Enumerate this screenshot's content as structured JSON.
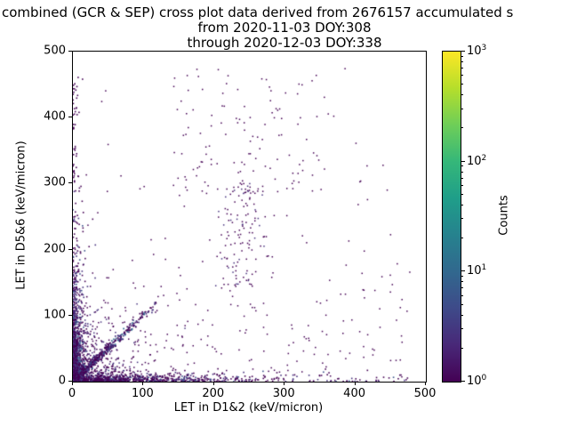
{
  "title": {
    "line1": "combined (GCR & SEP) cross plot data derived from 2676157 accumulated s",
    "line2": "from 2020-11-03 DOY:308",
    "line3": "through 2020-12-03 DOY:338"
  },
  "chart_data": {
    "type": "scatter",
    "title": "combined (GCR & SEP) cross plot data derived from 2676157 accumulated s",
    "subtitle": [
      "from 2020-11-03 DOY:308",
      "through 2020-12-03 DOY:338"
    ],
    "xlabel": "LET in D1&2 (keV/micron)",
    "ylabel": "LET in D5&6 (keV/micron)",
    "xlim": [
      0,
      500
    ],
    "ylim": [
      0,
      500
    ],
    "x_ticks": [
      0,
      100,
      200,
      300,
      400,
      500
    ],
    "y_ticks": [
      0,
      100,
      200,
      300,
      400,
      500
    ],
    "grid": false,
    "legend": "none",
    "colorbar": {
      "label": "Counts",
      "scale": "log",
      "range": [
        1,
        1000
      ],
      "tick_exponents": [
        0,
        1,
        2,
        3
      ],
      "colormap": "viridis",
      "gradient": [
        "#440154",
        "#482878",
        "#3e4a89",
        "#31688e",
        "#26828e",
        "#1f9e89",
        "#35b779",
        "#6ece58",
        "#b5de2b",
        "#fde725"
      ]
    },
    "description": "2D density cross plot (counts on log color scale). Bright teal/green high-count core at the origin; dense purple column along the y-axis up to ~320; dense purple band along the x-axis out to ~480; a y=x diagonal ridge up to ~115; moderate purple scatter in the lower-left quadrant; sparse purple points elsewhere including streaks near x~240 and scattered points up to y~465.",
    "clusters": [
      {
        "name": "core-teal",
        "n": 550,
        "size": 2,
        "x": {
          "type": "exp",
          "scale": 2.5,
          "max": 10
        },
        "y": {
          "type": "exp",
          "scale": 13,
          "max": 48
        },
        "colors": [
          [
            "#21918c",
            5
          ],
          [
            "#2c728e",
            3
          ],
          [
            "#1fa187",
            2
          ],
          [
            "#35b779",
            1
          ]
        ]
      },
      {
        "name": "core-blue",
        "n": 500,
        "size": 2,
        "x": {
          "type": "exp",
          "scale": 4,
          "max": 20
        },
        "y": {
          "type": "exp",
          "scale": 28,
          "max": 100
        },
        "colors": [
          [
            "#31688e",
            3
          ],
          [
            "#3b528b",
            3
          ],
          [
            "#472d7b",
            2
          ]
        ]
      },
      {
        "name": "left-column",
        "n": 800,
        "size": 1.6,
        "x": {
          "type": "exp",
          "scale": 6,
          "max": 32
        },
        "y": {
          "type": "exp",
          "scale": 75,
          "max": 320
        },
        "colors": [
          [
            "#440154",
            5
          ],
          [
            "#46327e",
            3
          ],
          [
            "#3b528b",
            1
          ]
        ]
      },
      {
        "name": "y-axis-high",
        "n": 45,
        "size": 1.6,
        "x": {
          "type": "exp",
          "scale": 5,
          "max": 15
        },
        "y": {
          "type": "uniform",
          "min": 300,
          "max": 470
        },
        "colors": [
          [
            "#440154",
            1
          ]
        ]
      },
      {
        "name": "bottom-band",
        "n": 900,
        "size": 1.6,
        "x": {
          "type": "exp",
          "scale": 115,
          "max": 490
        },
        "y": {
          "type": "exp",
          "scale": 5,
          "max": 20
        },
        "colors": [
          [
            "#440154",
            6
          ],
          [
            "#46327e",
            2
          ],
          [
            "#3b528b",
            1
          ]
        ]
      },
      {
        "name": "diagonal-ridge",
        "n": 480,
        "size": 1.7,
        "x": {
          "type": "exp",
          "scale": 48,
          "max": 118
        },
        "y": {
          "type": "diag",
          "sd": 3.5
        },
        "colors": [
          [
            "#440154",
            4
          ],
          [
            "#46327e",
            3
          ],
          [
            "#31688e",
            1
          ]
        ]
      },
      {
        "name": "origin-quadrant",
        "n": 520,
        "size": 1.5,
        "x": {
          "type": "exp",
          "scale": 38,
          "max": 160
        },
        "y": {
          "type": "exp",
          "scale": 38,
          "max": 160
        },
        "colors": [
          [
            "#440154",
            6
          ],
          [
            "#46327e",
            2
          ]
        ]
      },
      {
        "name": "mid-streak",
        "n": 130,
        "size": 1.5,
        "x": {
          "type": "normal",
          "mean": 240,
          "sd": 18
        },
        "y": {
          "type": "uniform",
          "min": 140,
          "max": 300
        },
        "colors": [
          [
            "#440154",
            4
          ],
          [
            "#46327e",
            1
          ]
        ]
      },
      {
        "name": "upper-scatter",
        "n": 110,
        "size": 1.5,
        "x": {
          "type": "uniform",
          "min": 140,
          "max": 360
        },
        "y": {
          "type": "uniform",
          "min": 280,
          "max": 465
        },
        "colors": [
          [
            "#440154",
            1
          ]
        ]
      },
      {
        "name": "sparse-low",
        "n": 170,
        "size": 1.5,
        "x": {
          "type": "uniform",
          "min": 0,
          "max": 480
        },
        "y": {
          "type": "exp",
          "scale": 110,
          "max": 470
        },
        "colors": [
          [
            "#440154",
            1
          ]
        ]
      },
      {
        "name": "sparse-wide",
        "n": 60,
        "size": 1.5,
        "x": {
          "type": "uniform",
          "min": 0,
          "max": 480
        },
        "y": {
          "type": "uniform",
          "min": 0,
          "max": 480
        },
        "colors": [
          [
            "#440154",
            1
          ]
        ]
      }
    ]
  }
}
